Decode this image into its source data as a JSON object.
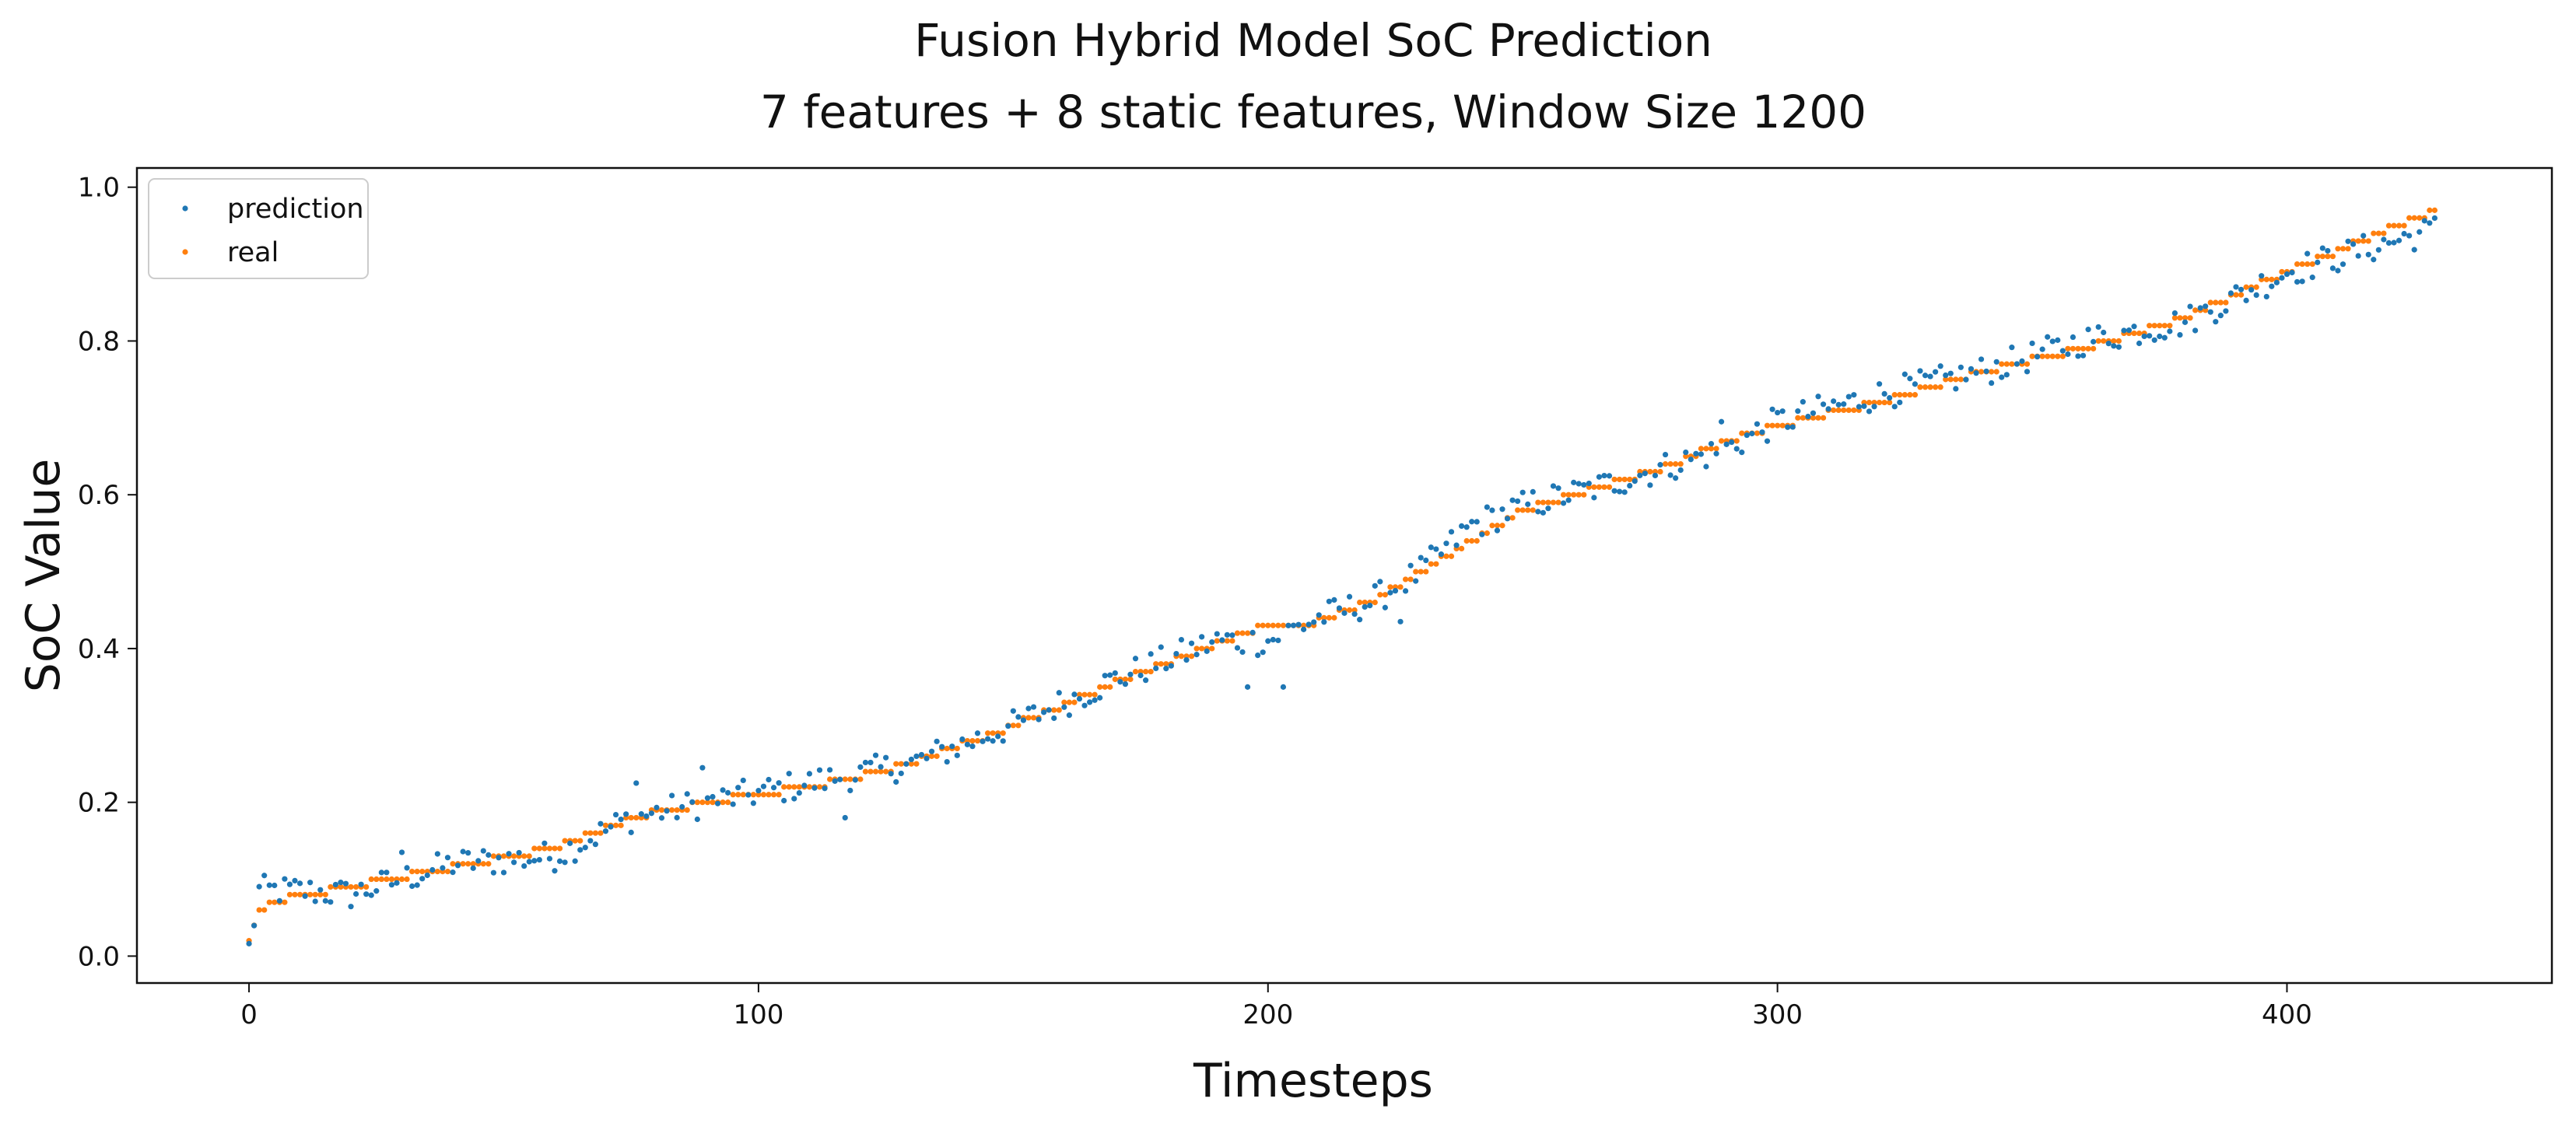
{
  "chart_data": {
    "type": "scatter",
    "title": "Fusion Hybrid Model SoC Prediction",
    "subtitle": "7 features + 8 static features, Window Size 1200",
    "xlabel": "Timesteps",
    "ylabel": "SoC Value",
    "xlim": [
      -22,
      452
    ],
    "ylim": [
      -0.035,
      1.025
    ],
    "xticks": [
      0,
      100,
      200,
      300,
      400
    ],
    "yticks": [
      0.0,
      0.2,
      0.4,
      0.6,
      0.8,
      1.0
    ],
    "xtick_labels": [
      "0",
      "100",
      "200",
      "300",
      "400"
    ],
    "ytick_labels": [
      "0.0",
      "0.2",
      "0.4",
      "0.6",
      "0.8",
      "1.0"
    ],
    "grid": false,
    "legend_position": "top-left",
    "n_points": 430,
    "series": [
      {
        "name": "prediction",
        "color": "#1f77b4",
        "anchors": [
          [
            0,
            0.01
          ],
          [
            2,
            0.085
          ],
          [
            10,
            0.085
          ],
          [
            20,
            0.08
          ],
          [
            40,
            0.12
          ],
          [
            60,
            0.13
          ],
          [
            75,
            0.18
          ],
          [
            90,
            0.2
          ],
          [
            110,
            0.225
          ],
          [
            130,
            0.25
          ],
          [
            150,
            0.3
          ],
          [
            170,
            0.36
          ],
          [
            190,
            0.41
          ],
          [
            200,
            0.41
          ],
          [
            210,
            0.44
          ],
          [
            220,
            0.46
          ],
          [
            230,
            0.5
          ],
          [
            240,
            0.56
          ],
          [
            250,
            0.585
          ],
          [
            265,
            0.61
          ],
          [
            280,
            0.64
          ],
          [
            290,
            0.66
          ],
          [
            300,
            0.695
          ],
          [
            320,
            0.73
          ],
          [
            340,
            0.76
          ],
          [
            360,
            0.8
          ],
          [
            380,
            0.825
          ],
          [
            400,
            0.89
          ],
          [
            429,
            0.945
          ]
        ],
        "outliers": [
          [
            30,
            0.135
          ],
          [
            76,
            0.225
          ],
          [
            89,
            0.245
          ],
          [
            117,
            0.18
          ],
          [
            196,
            0.35
          ],
          [
            203,
            0.35
          ],
          [
            226,
            0.435
          ],
          [
            289,
            0.695
          ]
        ],
        "jitter": 0.02
      },
      {
        "name": "real",
        "color": "#ff7f0e",
        "anchors": [
          [
            0,
            0.02
          ],
          [
            2,
            0.06
          ],
          [
            10,
            0.08
          ],
          [
            20,
            0.09
          ],
          [
            40,
            0.115
          ],
          [
            60,
            0.14
          ],
          [
            75,
            0.18
          ],
          [
            90,
            0.2
          ],
          [
            110,
            0.22
          ],
          [
            130,
            0.25
          ],
          [
            150,
            0.3
          ],
          [
            170,
            0.355
          ],
          [
            190,
            0.405
          ],
          [
            200,
            0.43
          ],
          [
            210,
            0.435
          ],
          [
            220,
            0.46
          ],
          [
            230,
            0.5
          ],
          [
            240,
            0.54
          ],
          [
            250,
            0.58
          ],
          [
            265,
            0.61
          ],
          [
            280,
            0.64
          ],
          [
            290,
            0.67
          ],
          [
            300,
            0.69
          ],
          [
            320,
            0.72
          ],
          [
            340,
            0.76
          ],
          [
            360,
            0.79
          ],
          [
            380,
            0.83
          ],
          [
            400,
            0.89
          ],
          [
            429,
            0.97
          ]
        ],
        "step": 0.01
      }
    ]
  }
}
